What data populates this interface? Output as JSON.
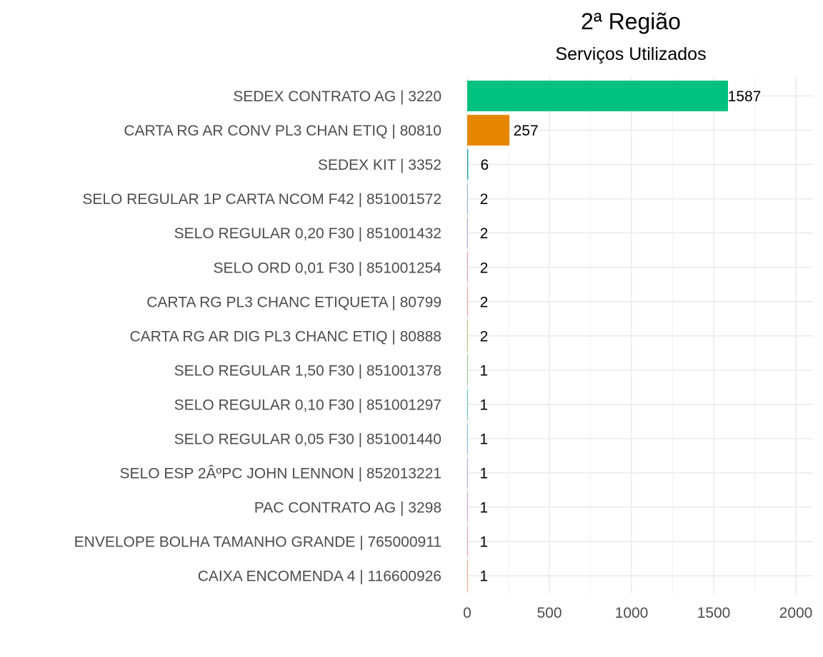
{
  "chart_data": {
    "type": "bar",
    "orientation": "horizontal",
    "title": "2ª Região",
    "subtitle": "Serviços Utilizados",
    "xlabel": "",
    "ylabel": "",
    "xlim": [
      0,
      2000
    ],
    "x_ticks": [
      0,
      500,
      1000,
      1500,
      2000
    ],
    "x_tick_labels": [
      "0",
      "500",
      "1000",
      "1500",
      "2000"
    ],
    "grid": true,
    "legend": "none",
    "categories": [
      "SEDEX CONTRATO AG | 3220",
      "CARTA RG AR CONV PL3 CHAN ETIQ | 80810",
      "SEDEX KIT | 3352",
      "SELO REGULAR 1P CARTA NCOM F42 | 851001572",
      "SELO REGULAR 0,20 F30 | 851001432",
      "SELO ORD 0,01 F30 | 851001254",
      "CARTA RG PL3 CHANC ETIQUETA | 80799",
      "CARTA RG AR DIG PL3 CHANC ETIQ | 80888",
      "SELO REGULAR 1,50 F30 | 851001378",
      "SELO REGULAR 0,10 F30 | 851001297",
      "SELO REGULAR 0,05 F30 | 851001440",
      "SELO ESP 2ÂºPC JOHN LENNON | 852013221",
      "PAC CONTRATO AG | 3298",
      "ENVELOPE BOLHA TAMANHO GRANDE | 765000911",
      "CAIXA ENCOMENDA 4 | 116600926"
    ],
    "values": [
      1587,
      257,
      6,
      2,
      2,
      2,
      2,
      2,
      1,
      1,
      1,
      1,
      1,
      1,
      1
    ],
    "value_labels": [
      "1587",
      "257",
      "6",
      "2",
      "2",
      "2",
      "2",
      "2",
      "1",
      "1",
      "1",
      "1",
      "1",
      "1",
      "1"
    ],
    "colors": [
      "#00c17f",
      "#e68600",
      "#1aa3b3",
      "#3b8bd9",
      "#9a6fd3",
      "#e45aa6",
      "#f2706a",
      "#aea21f",
      "#57b346",
      "#00b6a3",
      "#2e9fe0",
      "#7f7fde",
      "#c86fd2",
      "#ee6c96",
      "#f07c4a"
    ]
  }
}
